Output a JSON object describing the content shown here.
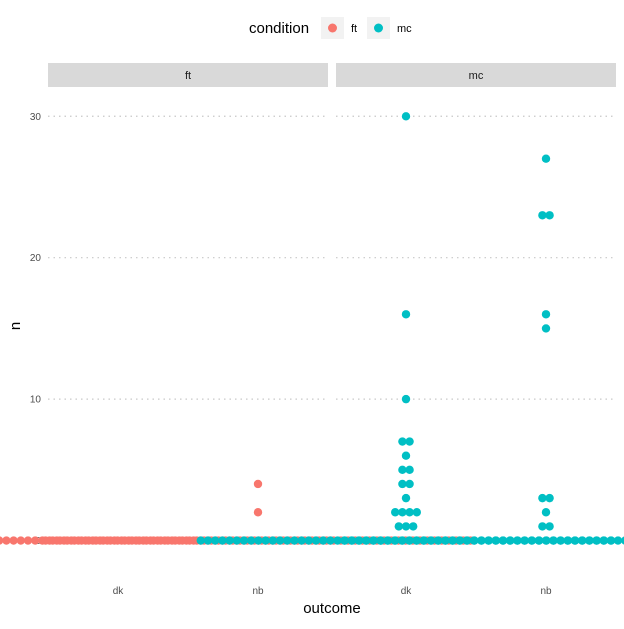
{
  "chart_data": {
    "type": "scatter",
    "subtype": "dotplot-faceted",
    "xlabel": "outcome",
    "ylabel": "n",
    "ylim": [
      -1.8,
      32
    ],
    "y_ticks": [
      0,
      10,
      20,
      30
    ],
    "grid": "horizontal-dotted",
    "legend": {
      "title": "condition",
      "position": "top",
      "items": [
        {
          "label": "ft",
          "color": "#F8766D"
        },
        {
          "label": "mc",
          "color": "#00BFC4"
        }
      ]
    },
    "categories": [
      "dk",
      "nb"
    ],
    "facets": [
      {
        "label": "ft",
        "color": "#F8766D",
        "groups": [
          {
            "category": "dk",
            "values": [
              0,
              0,
              0,
              0,
              0,
              0,
              0,
              0,
              0,
              0,
              0,
              0,
              0,
              0,
              0,
              0,
              0,
              0,
              0,
              0,
              0,
              0,
              0,
              0,
              0,
              0,
              0,
              0,
              0,
              0,
              0,
              0,
              0,
              0,
              0,
              0,
              0,
              0,
              0,
              0,
              0,
              0,
              0,
              0,
              0,
              0,
              0,
              0,
              0,
              0,
              0,
              0,
              0,
              0,
              0,
              0,
              0,
              0,
              0,
              0
            ]
          },
          {
            "category": "nb",
            "values": [
              0,
              0,
              0,
              0,
              0,
              0,
              0,
              0,
              0,
              0,
              0,
              0,
              0,
              0,
              0,
              0,
              0,
              0,
              0,
              0,
              0,
              0,
              0,
              0,
              0,
              0,
              0,
              0,
              0,
              0,
              0,
              0,
              0,
              0,
              0,
              0,
              0,
              0,
              0,
              0,
              0,
              0,
              0,
              0,
              0,
              0,
              0,
              0,
              0,
              0,
              0,
              0,
              0,
              0,
              0,
              0,
              0,
              0,
              0,
              0,
              2,
              4
            ]
          }
        ]
      },
      {
        "label": "mc",
        "color": "#00BFC4",
        "groups": [
          {
            "category": "dk",
            "values": [
              0,
              0,
              0,
              0,
              0,
              0,
              0,
              0,
              0,
              0,
              0,
              0,
              0,
              0,
              0,
              0,
              0,
              0,
              0,
              0,
              0,
              0,
              0,
              0,
              0,
              0,
              0,
              0,
              0,
              0,
              0,
              0,
              0,
              0,
              0,
              0,
              0,
              0,
              0,
              0,
              0,
              0,
              0,
              0,
              0,
              0,
              0,
              0,
              0,
              0,
              0,
              0,
              0,
              0,
              0,
              0,
              0,
              0,
              1,
              1,
              1,
              2,
              2,
              2,
              2,
              3,
              4,
              4,
              5,
              5,
              6,
              7,
              7,
              10,
              16,
              30
            ]
          },
          {
            "category": "nb",
            "values": [
              0,
              0,
              0,
              0,
              0,
              0,
              0,
              0,
              0,
              0,
              0,
              0,
              0,
              0,
              0,
              0,
              0,
              0,
              0,
              0,
              0,
              0,
              0,
              0,
              0,
              0,
              0,
              0,
              0,
              0,
              0,
              0,
              0,
              0,
              0,
              0,
              0,
              0,
              0,
              0,
              0,
              0,
              0,
              0,
              0,
              0,
              0,
              0,
              0,
              0,
              0,
              0,
              0,
              0,
              0,
              0,
              0,
              1,
              1,
              2,
              3,
              3,
              15,
              16,
              23,
              23,
              27
            ]
          }
        ]
      }
    ]
  }
}
